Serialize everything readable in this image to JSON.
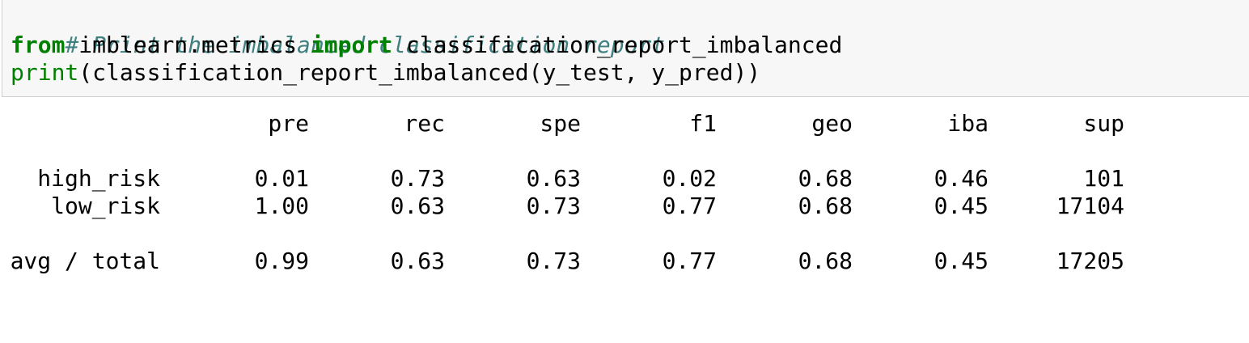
{
  "code_cell": {
    "comment": "# Print the imbalanced classification report",
    "line2": {
      "kw_from": "from",
      "module": " imblearn.metrics ",
      "kw_import": "import",
      "name": " classification_report_imbalanced"
    },
    "line3": {
      "builtin_print": "print",
      "call": "(classification_report_imbalanced(y_test, y_pred))"
    }
  },
  "report": {
    "headers": [
      "pre",
      "rec",
      "spe",
      "f1",
      "geo",
      "iba",
      "sup"
    ],
    "rows": [
      {
        "label": "high_risk",
        "values": [
          "0.01",
          "0.73",
          "0.63",
          "0.02",
          "0.68",
          "0.46",
          "101"
        ]
      },
      {
        "label": "low_risk",
        "values": [
          "1.00",
          "0.63",
          "0.73",
          "0.77",
          "0.68",
          "0.45",
          "17104"
        ]
      }
    ],
    "total": {
      "label": "avg / total",
      "values": [
        "0.99",
        "0.63",
        "0.73",
        "0.77",
        "0.68",
        "0.45",
        "17205"
      ]
    }
  },
  "colors": {
    "comment": "#408080",
    "keyword": "#008000",
    "cell_background": "#f7f7f7"
  }
}
